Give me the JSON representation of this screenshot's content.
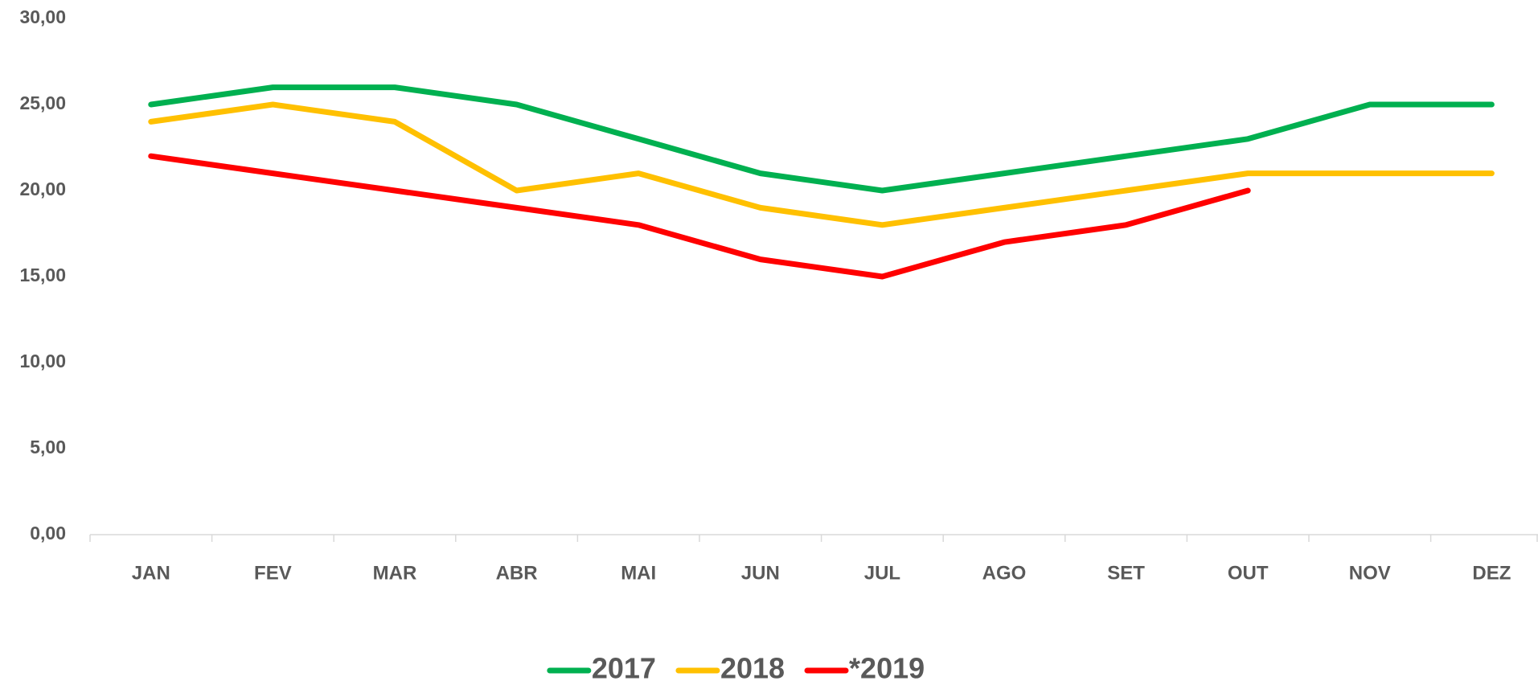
{
  "chart_data": {
    "type": "line",
    "categories": [
      "JAN",
      "FEV",
      "MAR",
      "ABR",
      "MAI",
      "JUN",
      "JUL",
      "AGO",
      "SET",
      "OUT",
      "NOV",
      "DEZ"
    ],
    "series": [
      {
        "name": "2017",
        "color": "#00b050",
        "values": [
          25,
          26,
          26,
          25,
          23,
          21,
          20,
          21,
          22,
          23,
          25,
          25
        ]
      },
      {
        "name": "2018",
        "color": "#ffc000",
        "values": [
          24,
          25,
          24,
          20,
          21,
          19,
          18,
          19,
          20,
          21,
          21,
          21
        ]
      },
      {
        "name": "*2019",
        "color": "#ff0000",
        "values": [
          22,
          21,
          20,
          19,
          18,
          16,
          15,
          17,
          18,
          20,
          null,
          null
        ]
      }
    ],
    "ylim": [
      0,
      30
    ],
    "yticks": [
      {
        "value": 0,
        "label": "0,00"
      },
      {
        "value": 5,
        "label": "5,00"
      },
      {
        "value": 10,
        "label": "10,00"
      },
      {
        "value": 15,
        "label": "15,00"
      },
      {
        "value": 20,
        "label": "20,00"
      },
      {
        "value": 25,
        "label": "25,00"
      },
      {
        "value": 30,
        "label": "30,00"
      }
    ],
    "grid": false,
    "legend": "bottom"
  }
}
